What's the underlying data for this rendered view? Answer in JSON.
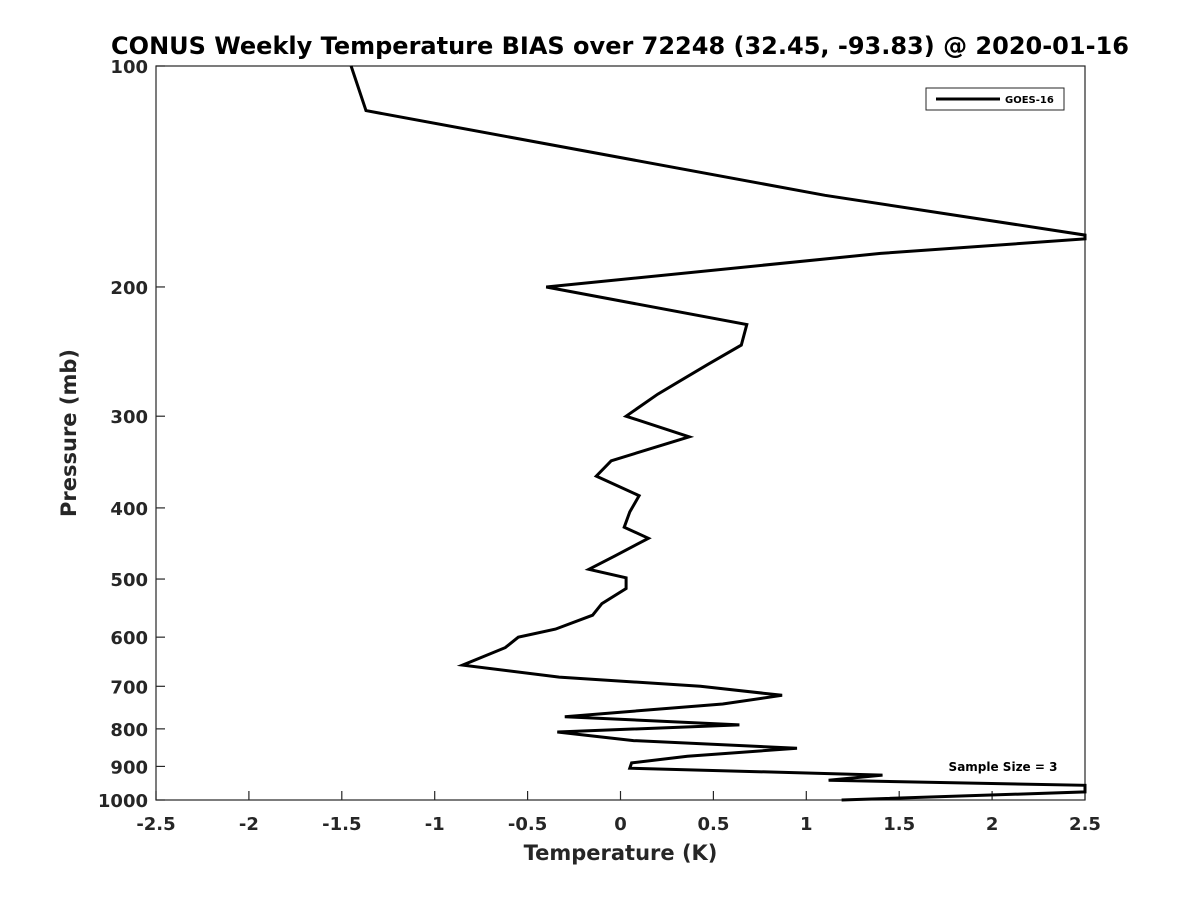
{
  "chart_data": {
    "type": "line",
    "title": "CONUS Weekly Temperature BIAS over 72248 (32.45, -93.83) @ 2020-01-16",
    "xlabel": "Temperature (K)",
    "ylabel": "Pressure (mb)",
    "xlim": [
      -2.5,
      2.5
    ],
    "ylim": [
      100,
      1000
    ],
    "yscale": "log",
    "y_reversed": true,
    "xticks": [
      -2.5,
      -2,
      -1.5,
      -1,
      -0.5,
      0,
      0.5,
      1,
      1.5,
      2,
      2.5
    ],
    "xtick_labels": [
      "-2.5",
      "-2",
      "-1.5",
      "-1",
      "-0.5",
      "0",
      "0.5",
      "1",
      "1.5",
      "2",
      "2.5"
    ],
    "yticks": [
      100,
      200,
      300,
      400,
      500,
      600,
      700,
      800,
      900,
      1000
    ],
    "ytick_labels": [
      "100",
      "200",
      "300",
      "400",
      "500",
      "600",
      "700",
      "800",
      "900",
      "1000"
    ],
    "grid": false,
    "legend_position": "top-right",
    "annotation": "Sample Size = 3",
    "series": [
      {
        "name": "GOES-16",
        "color": "#000000",
        "points": [
          [
            -1.45,
            100
          ],
          [
            -1.37,
            115
          ],
          [
            1.1,
            150
          ],
          [
            2.5,
            170
          ],
          [
            2.5,
            172
          ],
          [
            1.4,
            180
          ],
          [
            -0.4,
            200
          ],
          [
            0.68,
            225
          ],
          [
            0.65,
            240
          ],
          [
            0.47,
            255
          ],
          [
            0.2,
            280
          ],
          [
            0.03,
            300
          ],
          [
            0.37,
            320
          ],
          [
            -0.05,
            345
          ],
          [
            -0.13,
            362
          ],
          [
            0.1,
            385
          ],
          [
            0.05,
            405
          ],
          [
            0.02,
            425
          ],
          [
            0.15,
            440
          ],
          [
            -0.03,
            465
          ],
          [
            -0.17,
            485
          ],
          [
            0.03,
            498
          ],
          [
            0.03,
            515
          ],
          [
            -0.1,
            540
          ],
          [
            -0.15,
            560
          ],
          [
            -0.35,
            585
          ],
          [
            -0.55,
            600
          ],
          [
            -0.62,
            620
          ],
          [
            -0.85,
            655
          ],
          [
            -0.33,
            680
          ],
          [
            0.43,
            700
          ],
          [
            0.87,
            720
          ],
          [
            0.55,
            740
          ],
          [
            -0.3,
            770
          ],
          [
            0.64,
            790
          ],
          [
            -0.34,
            808
          ],
          [
            0.07,
            830
          ],
          [
            0.95,
            850
          ],
          [
            0.36,
            872
          ],
          [
            0.06,
            890
          ],
          [
            0.05,
            905
          ],
          [
            1.41,
            925
          ],
          [
            1.12,
            940
          ],
          [
            2.5,
            955
          ],
          [
            2.5,
            975
          ],
          [
            1.19,
            1000
          ]
        ]
      }
    ]
  }
}
